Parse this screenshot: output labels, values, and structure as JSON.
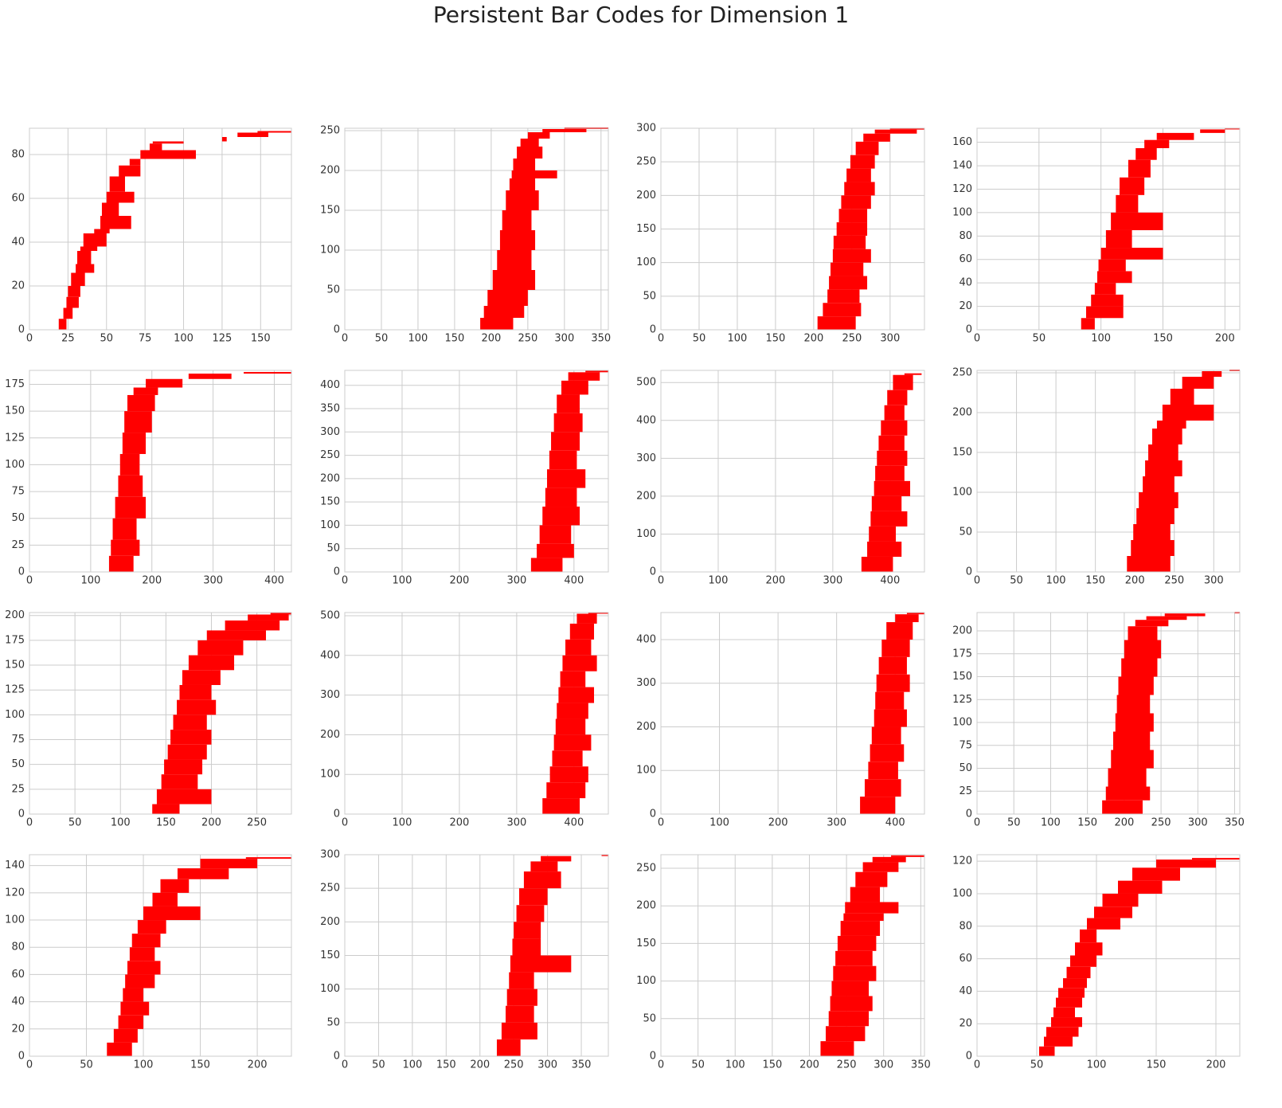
{
  "title": "Persistent Bar Codes for Dimension 1",
  "chart_data": [
    {
      "type": "barcode",
      "color": "#ff0000",
      "grid": true,
      "xlim": [
        0,
        170
      ],
      "xticks": [
        0,
        25,
        50,
        75,
        100,
        125,
        150
      ],
      "ylim": [
        0,
        92
      ],
      "yticks": [
        0,
        20,
        40,
        60,
        80
      ],
      "rows": [
        0,
        5,
        10,
        15,
        20,
        26,
        30,
        36,
        38,
        44,
        46,
        52,
        58,
        63,
        70,
        75,
        78,
        82,
        85,
        86,
        88,
        90
      ],
      "births": [
        19,
        22,
        24,
        25,
        27,
        30,
        31,
        33,
        35,
        42,
        46,
        47,
        50,
        52,
        58,
        65,
        72,
        78,
        80,
        125,
        135,
        148
      ],
      "deaths": [
        24,
        28,
        32,
        33,
        36,
        42,
        40,
        44,
        50,
        52,
        66,
        58,
        68,
        62,
        72,
        72,
        108,
        86,
        100,
        128,
        155,
        170
      ]
    },
    {
      "type": "barcode",
      "color": "#ff0000",
      "grid": true,
      "xlim": [
        0,
        360
      ],
      "xticks": [
        0,
        50,
        100,
        150,
        200,
        250,
        300,
        350
      ],
      "ylim": [
        0,
        253
      ],
      "yticks": [
        0,
        50,
        100,
        150,
        200,
        250
      ],
      "rows": [
        0,
        15,
        30,
        50,
        75,
        100,
        125,
        150,
        175,
        190,
        200,
        215,
        230,
        240,
        248,
        252
      ],
      "births": [
        185,
        190,
        195,
        202,
        208,
        212,
        215,
        220,
        225,
        228,
        230,
        235,
        240,
        250,
        270,
        300
      ],
      "deaths": [
        230,
        245,
        250,
        260,
        255,
        260,
        255,
        265,
        260,
        290,
        260,
        270,
        265,
        280,
        330,
        360
      ]
    },
    {
      "type": "barcode",
      "color": "#ff0000",
      "grid": true,
      "xlim": [
        0,
        345
      ],
      "xticks": [
        0,
        50,
        100,
        150,
        200,
        250,
        300
      ],
      "ylim": [
        0,
        300
      ],
      "yticks": [
        0,
        50,
        100,
        150,
        200,
        250,
        300
      ],
      "rows": [
        0,
        20,
        40,
        60,
        80,
        100,
        120,
        140,
        160,
        180,
        200,
        220,
        240,
        260,
        280,
        292,
        298
      ],
      "births": [
        205,
        212,
        218,
        220,
        222,
        225,
        226,
        230,
        233,
        236,
        240,
        243,
        248,
        255,
        265,
        280,
        300
      ],
      "deaths": [
        255,
        262,
        260,
        270,
        265,
        275,
        268,
        270,
        270,
        275,
        280,
        275,
        280,
        285,
        300,
        335,
        345
      ]
    },
    {
      "type": "barcode",
      "color": "#ff0000",
      "grid": true,
      "xlim": [
        0,
        212
      ],
      "xticks": [
        0,
        50,
        100,
        150,
        200
      ],
      "ylim": [
        0,
        172
      ],
      "yticks": [
        0,
        20,
        40,
        60,
        80,
        100,
        120,
        140,
        160
      ],
      "rows": [
        0,
        10,
        20,
        30,
        40,
        50,
        60,
        70,
        85,
        100,
        115,
        130,
        145,
        155,
        162,
        168,
        171
      ],
      "births": [
        84,
        88,
        92,
        95,
        97,
        98,
        100,
        104,
        108,
        112,
        115,
        122,
        128,
        135,
        145,
        180,
        200
      ],
      "deaths": [
        95,
        118,
        118,
        112,
        125,
        120,
        150,
        125,
        150,
        130,
        135,
        140,
        145,
        155,
        175,
        200,
        212
      ]
    },
    {
      "type": "barcode",
      "color": "#ff0000",
      "grid": true,
      "xlim": [
        0,
        428
      ],
      "xticks": [
        0,
        100,
        200,
        300,
        400
      ],
      "ylim": [
        0,
        188
      ],
      "yticks": [
        0,
        25,
        50,
        75,
        100,
        125,
        150,
        175
      ],
      "rows": [
        0,
        15,
        30,
        50,
        70,
        90,
        110,
        130,
        150,
        165,
        172,
        180,
        185
      ],
      "births": [
        130,
        133,
        136,
        140,
        145,
        148,
        152,
        155,
        160,
        170,
        190,
        260,
        350
      ],
      "deaths": [
        170,
        180,
        175,
        190,
        185,
        180,
        190,
        200,
        205,
        210,
        250,
        330,
        428
      ]
    },
    {
      "type": "barcode",
      "color": "#ff0000",
      "grid": true,
      "xlim": [
        0,
        460
      ],
      "xticks": [
        0,
        100,
        200,
        300,
        400
      ],
      "ylim": [
        0,
        432
      ],
      "yticks": [
        0,
        50,
        100,
        150,
        200,
        250,
        300,
        350,
        400
      ],
      "rows": [
        0,
        30,
        60,
        100,
        140,
        180,
        220,
        260,
        300,
        340,
        380,
        410,
        428
      ],
      "births": [
        325,
        335,
        340,
        345,
        350,
        353,
        357,
        360,
        365,
        370,
        378,
        390,
        420
      ],
      "deaths": [
        380,
        400,
        395,
        410,
        405,
        420,
        405,
        410,
        415,
        410,
        425,
        445,
        460
      ]
    },
    {
      "type": "barcode",
      "color": "#ff0000",
      "grid": true,
      "xlim": [
        0,
        460
      ],
      "xticks": [
        0,
        100,
        200,
        300,
        400
      ],
      "ylim": [
        0,
        532
      ],
      "yticks": [
        0,
        100,
        200,
        300,
        400,
        500
      ],
      "rows": [
        0,
        40,
        80,
        120,
        160,
        200,
        240,
        280,
        320,
        360,
        400,
        440,
        480,
        520
      ],
      "births": [
        350,
        360,
        363,
        366,
        368,
        372,
        374,
        377,
        380,
        384,
        390,
        395,
        405,
        425
      ],
      "deaths": [
        405,
        420,
        410,
        430,
        420,
        435,
        425,
        430,
        425,
        430,
        425,
        430,
        440,
        455
      ]
    },
    {
      "type": "barcode",
      "color": "#ff0000",
      "grid": true,
      "xlim": [
        0,
        333
      ],
      "xticks": [
        0,
        50,
        100,
        150,
        200,
        250,
        300
      ],
      "ylim": [
        0,
        253
      ],
      "yticks": [
        0,
        50,
        100,
        150,
        200,
        250
      ],
      "rows": [
        0,
        20,
        40,
        60,
        80,
        100,
        120,
        140,
        160,
        180,
        190,
        210,
        230,
        245,
        252
      ],
      "births": [
        190,
        195,
        198,
        202,
        205,
        210,
        213,
        217,
        222,
        228,
        235,
        245,
        260,
        285,
        320
      ],
      "deaths": [
        245,
        250,
        245,
        250,
        255,
        250,
        260,
        255,
        260,
        265,
        300,
        275,
        300,
        310,
        333
      ]
    },
    {
      "type": "barcode",
      "color": "#ff0000",
      "grid": true,
      "xlim": [
        0,
        288
      ],
      "xticks": [
        0,
        50,
        100,
        150,
        200,
        250
      ],
      "ylim": [
        0,
        203
      ],
      "yticks": [
        0,
        25,
        50,
        75,
        100,
        125,
        150,
        175,
        200
      ],
      "rows": [
        0,
        10,
        25,
        40,
        55,
        70,
        85,
        100,
        115,
        130,
        145,
        160,
        175,
        185,
        195,
        201
      ],
      "births": [
        135,
        140,
        145,
        148,
        152,
        155,
        158,
        162,
        165,
        168,
        175,
        185,
        195,
        215,
        240,
        265
      ],
      "deaths": [
        165,
        200,
        185,
        190,
        195,
        200,
        195,
        205,
        200,
        210,
        225,
        235,
        260,
        275,
        285,
        288
      ]
    },
    {
      "type": "barcode",
      "color": "#ff0000",
      "grid": true,
      "xlim": [
        0,
        460
      ],
      "xticks": [
        0,
        100,
        200,
        300,
        400
      ],
      "ylim": [
        0,
        508
      ],
      "yticks": [
        0,
        100,
        200,
        300,
        400,
        500
      ],
      "rows": [
        0,
        40,
        80,
        120,
        160,
        200,
        240,
        280,
        320,
        360,
        400,
        440,
        480,
        505
      ],
      "births": [
        345,
        352,
        358,
        362,
        365,
        368,
        370,
        373,
        376,
        380,
        385,
        393,
        405,
        425
      ],
      "deaths": [
        410,
        420,
        425,
        415,
        430,
        420,
        425,
        435,
        420,
        440,
        430,
        435,
        440,
        460
      ]
    },
    {
      "type": "barcode",
      "color": "#ff0000",
      "grid": true,
      "xlim": [
        0,
        450
      ],
      "xticks": [
        0,
        100,
        200,
        300,
        400
      ],
      "ylim": [
        0,
        462
      ],
      "yticks": [
        0,
        100,
        200,
        300,
        400
      ],
      "rows": [
        0,
        40,
        80,
        120,
        160,
        200,
        240,
        280,
        320,
        360,
        400,
        440,
        458
      ],
      "births": [
        340,
        348,
        354,
        357,
        360,
        364,
        366,
        368,
        372,
        377,
        385,
        400,
        420
      ],
      "deaths": [
        400,
        410,
        405,
        415,
        410,
        420,
        415,
        425,
        420,
        425,
        430,
        440,
        450
      ]
    },
    {
      "type": "barcode",
      "color": "#ff0000",
      "grid": true,
      "xlim": [
        0,
        357
      ],
      "xticks": [
        0,
        50,
        100,
        150,
        200,
        250,
        300,
        350
      ],
      "ylim": [
        0,
        220
      ],
      "yticks": [
        0,
        25,
        50,
        75,
        100,
        125,
        150,
        175,
        200
      ],
      "rows": [
        0,
        15,
        30,
        50,
        70,
        90,
        110,
        130,
        150,
        170,
        190,
        205,
        212,
        216,
        219
      ],
      "births": [
        170,
        175,
        178,
        182,
        185,
        188,
        190,
        192,
        196,
        200,
        205,
        215,
        230,
        255,
        350
      ],
      "deaths": [
        225,
        235,
        230,
        240,
        235,
        240,
        235,
        240,
        245,
        250,
        245,
        260,
        285,
        310,
        357
      ]
    },
    {
      "type": "barcode",
      "color": "#ff0000",
      "grid": true,
      "xlim": [
        0,
        230
      ],
      "xticks": [
        0,
        50,
        100,
        150,
        200
      ],
      "ylim": [
        0,
        148
      ],
      "yticks": [
        0,
        20,
        40,
        60,
        80,
        100,
        120,
        140
      ],
      "rows": [
        0,
        10,
        20,
        30,
        40,
        50,
        60,
        70,
        80,
        90,
        100,
        110,
        120,
        130,
        138,
        145
      ],
      "births": [
        68,
        74,
        78,
        80,
        82,
        84,
        86,
        88,
        90,
        95,
        100,
        108,
        115,
        130,
        150,
        190
      ],
      "deaths": [
        90,
        95,
        100,
        105,
        100,
        110,
        115,
        110,
        115,
        120,
        150,
        130,
        140,
        175,
        200,
        230
      ]
    },
    {
      "type": "barcode",
      "color": "#ff0000",
      "grid": true,
      "xlim": [
        0,
        390
      ],
      "xticks": [
        0,
        50,
        100,
        150,
        200,
        250,
        300,
        350
      ],
      "ylim": [
        0,
        300
      ],
      "yticks": [
        0,
        50,
        100,
        150,
        200,
        250,
        300
      ],
      "rows": [
        0,
        25,
        50,
        75,
        100,
        125,
        150,
        175,
        200,
        225,
        250,
        275,
        290,
        298
      ],
      "births": [
        225,
        232,
        238,
        240,
        243,
        245,
        248,
        250,
        254,
        258,
        265,
        275,
        290,
        380
      ],
      "deaths": [
        260,
        285,
        280,
        285,
        280,
        335,
        290,
        290,
        295,
        300,
        320,
        315,
        335,
        390
      ]
    },
    {
      "type": "barcode",
      "color": "#ff0000",
      "grid": true,
      "xlim": [
        0,
        355
      ],
      "xticks": [
        0,
        50,
        100,
        150,
        200,
        250,
        300,
        350
      ],
      "ylim": [
        0,
        268
      ],
      "yticks": [
        0,
        50,
        100,
        150,
        200,
        250
      ],
      "rows": [
        0,
        20,
        40,
        60,
        80,
        100,
        120,
        140,
        160,
        180,
        190,
        205,
        225,
        245,
        258,
        265
      ],
      "births": [
        215,
        222,
        226,
        228,
        230,
        232,
        235,
        238,
        242,
        246,
        248,
        255,
        262,
        272,
        285,
        310
      ],
      "deaths": [
        260,
        275,
        280,
        285,
        280,
        290,
        285,
        290,
        295,
        300,
        320,
        295,
        305,
        320,
        330,
        355
      ]
    },
    {
      "type": "barcode",
      "color": "#ff0000",
      "grid": true,
      "xlim": [
        0,
        220
      ],
      "xticks": [
        0,
        50,
        100,
        150,
        200
      ],
      "ylim": [
        0,
        124
      ],
      "yticks": [
        0,
        20,
        40,
        60,
        80,
        100,
        120
      ],
      "rows": [
        0,
        6,
        12,
        18,
        24,
        30,
        36,
        42,
        48,
        55,
        62,
        70,
        78,
        85,
        92,
        100,
        108,
        116,
        121
      ],
      "births": [
        52,
        56,
        58,
        62,
        64,
        66,
        68,
        72,
        75,
        78,
        82,
        86,
        92,
        98,
        105,
        118,
        130,
        150,
        180
      ],
      "deaths": [
        65,
        80,
        85,
        88,
        82,
        88,
        90,
        92,
        95,
        100,
        105,
        100,
        120,
        130,
        135,
        155,
        170,
        200,
        220
      ]
    }
  ]
}
